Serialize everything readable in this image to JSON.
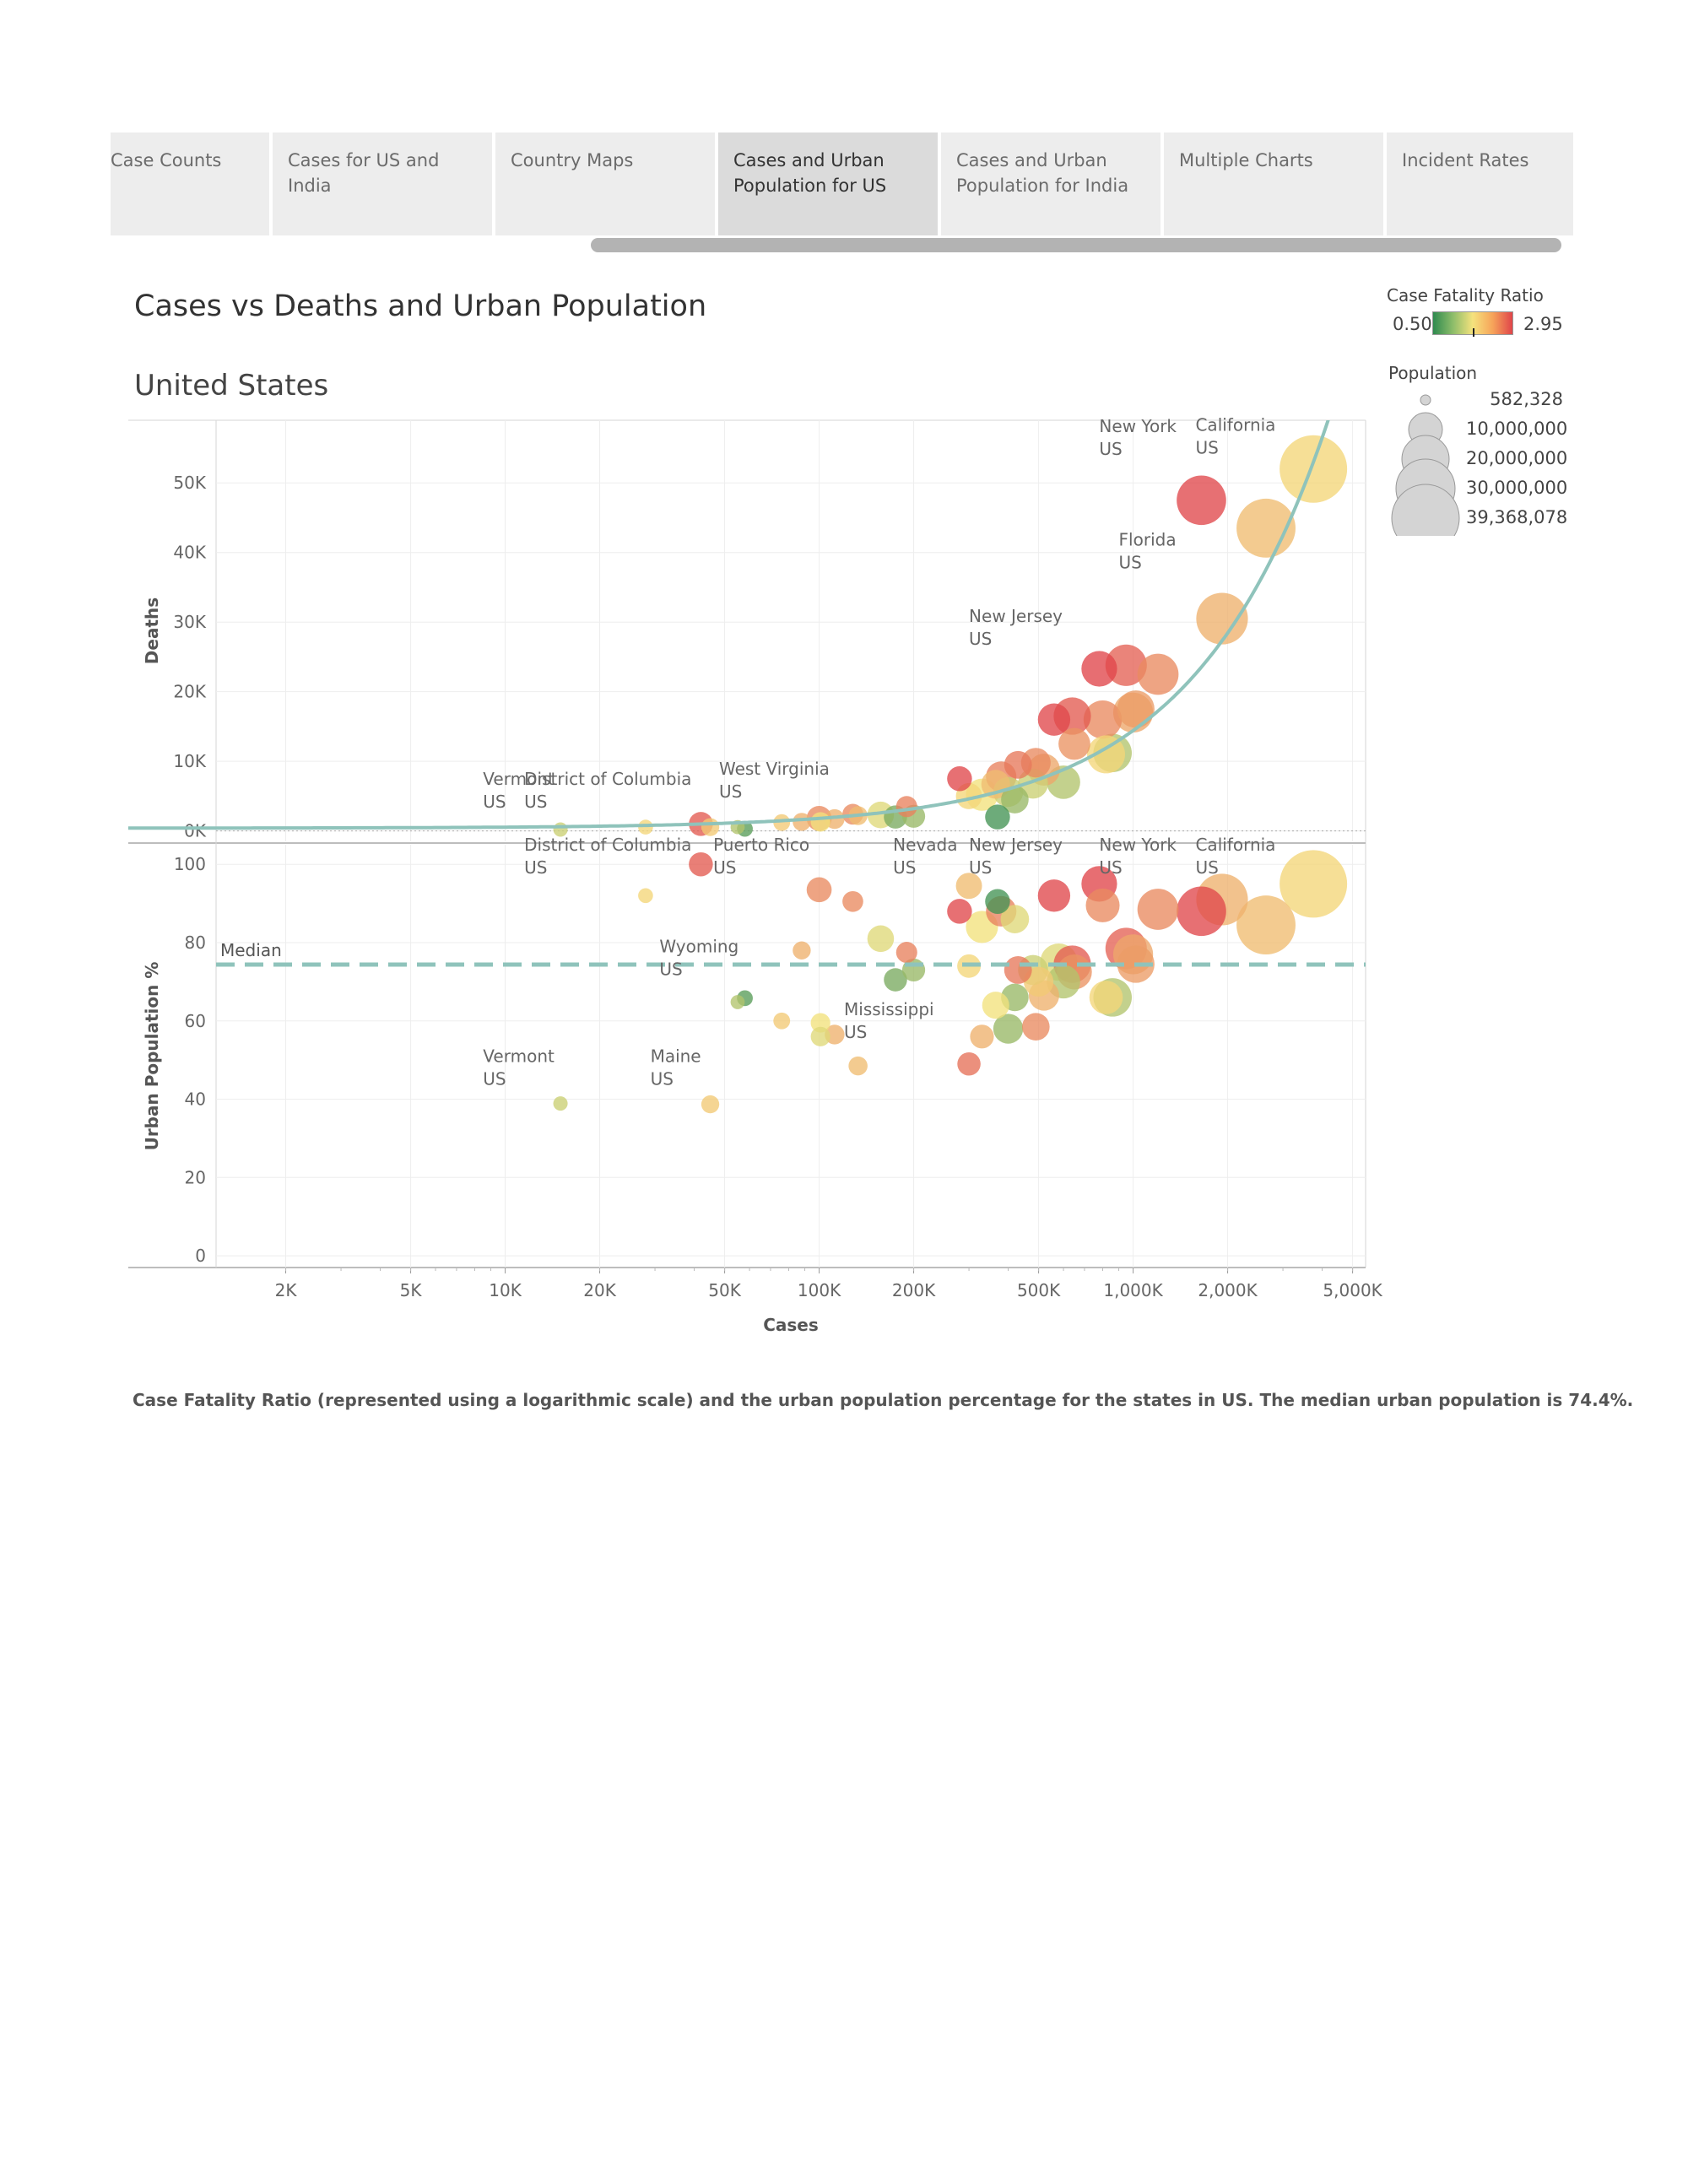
{
  "tabs": [
    {
      "label": "Case Counts",
      "active": false
    },
    {
      "label": "Cases for US and India",
      "active": false
    },
    {
      "label": "Country Maps",
      "active": false
    },
    {
      "label": "Cases and Urban\nPopulation for US",
      "active": true
    },
    {
      "label": "Cases and Urban\nPopulation for India",
      "active": false
    },
    {
      "label": "Multiple Charts",
      "active": false
    },
    {
      "label": "Incident Rates",
      "active": false
    }
  ],
  "header": {
    "title": "Cases vs Deaths and Urban Population",
    "subtitle": "United States"
  },
  "legend": {
    "cfr_title": "Case Fatality Ratio",
    "cfr_min": "0.50",
    "cfr_max": "2.95",
    "pop_title": "Population",
    "pop_entries": [
      "582,328",
      "10,000,000",
      "20,000,000",
      "30,000,000",
      "39,368,078"
    ]
  },
  "caption": "Case Fatality Ratio (represented using a logarithmic scale) and the urban population percentage for the states in US. The median urban population is 74.4%.",
  "colors": {
    "trend": "#8fc3bb",
    "grid": "#eeeeee",
    "cfr_low": "#2f8a4f",
    "cfr_mid": "#f5e27d",
    "cfr_high": "#e0454a"
  },
  "chart_data": {
    "type": "scatter",
    "xlabel": "Cases",
    "x_scale": "log",
    "xlim": [
      1200,
      5500000
    ],
    "x_ticks": [
      {
        "v": 2000,
        "label": "2K"
      },
      {
        "v": 5000,
        "label": "5K"
      },
      {
        "v": 10000,
        "label": "10K"
      },
      {
        "v": 20000,
        "label": "20K"
      },
      {
        "v": 50000,
        "label": "50K"
      },
      {
        "v": 100000,
        "label": "100K"
      },
      {
        "v": 200000,
        "label": "200K"
      },
      {
        "v": 500000,
        "label": "500K"
      },
      {
        "v": 1000000,
        "label": "1,000K"
      },
      {
        "v": 2000000,
        "label": "2,000K"
      },
      {
        "v": 5000000,
        "label": "5,000K"
      }
    ],
    "panels": [
      {
        "name": "deaths",
        "ylabel": "Deaths",
        "ylim": [
          -1500,
          59000
        ],
        "y_ticks": [
          {
            "v": 0,
            "label": "0K"
          },
          {
            "v": 10000,
            "label": "10K"
          },
          {
            "v": 20000,
            "label": "20K"
          },
          {
            "v": 30000,
            "label": "30K"
          },
          {
            "v": 40000,
            "label": "40K"
          },
          {
            "v": 50000,
            "label": "50K"
          }
        ],
        "trend_line": {
          "type": "linear",
          "slope": 0.01402,
          "intercept": 400
        },
        "annotations": [
          {
            "text": [
              "Vermont",
              "US"
            ],
            "x": 8500,
            "y": 6600
          },
          {
            "text": [
              "District of Columbia",
              "US"
            ],
            "x": 11500,
            "y": 6600
          },
          {
            "text": [
              "West Virginia",
              "US"
            ],
            "x": 48000,
            "y": 8100
          },
          {
            "text": [
              "New Jersey",
              "US"
            ],
            "x": 300000,
            "y": 30000
          },
          {
            "text": [
              "Florida",
              "US"
            ],
            "x": 900000,
            "y": 41000
          },
          {
            "text": [
              "New York",
              "US"
            ],
            "x": 780000,
            "y": 57300
          },
          {
            "text": [
              "California",
              "US"
            ],
            "x": 1580000,
            "y": 57500
          }
        ],
        "points": [
          {
            "x": 15000,
            "y": 200,
            "cfr": 1.0,
            "pop": 623989
          },
          {
            "x": 28000,
            "y": 550,
            "cfr": 1.3,
            "pop": 705749
          },
          {
            "x": 42000,
            "y": 1000,
            "cfr": 2.6,
            "pop": 3193694
          },
          {
            "x": 45000,
            "y": 550,
            "cfr": 1.4,
            "pop": 1344212
          },
          {
            "x": 55000,
            "y": 550,
            "cfr": 0.9,
            "pop": 578759
          },
          {
            "x": 58000,
            "y": 300,
            "cfr": 0.6,
            "pop": 884659
          },
          {
            "x": 76000,
            "y": 1200,
            "cfr": 1.4,
            "pop": 1068778
          },
          {
            "x": 88000,
            "y": 1300,
            "cfr": 1.6,
            "pop": 1360000
          },
          {
            "x": 100000,
            "y": 1800,
            "cfr": 2.0,
            "pop": 3565287
          },
          {
            "x": 101000,
            "y": 1300,
            "cfr": 1.2,
            "pop": 1750000
          },
          {
            "x": 112000,
            "y": 1700,
            "cfr": 1.6,
            "pop": 1800000
          },
          {
            "x": 128000,
            "y": 2400,
            "cfr": 2.0,
            "pop": 2100000
          },
          {
            "x": 133000,
            "y": 2200,
            "cfr": 1.5,
            "pop": 1600000
          },
          {
            "x": 157000,
            "y": 2300,
            "cfr": 1.1,
            "pop": 4217737
          },
          {
            "x": 175000,
            "y": 2000,
            "cfr": 0.7,
            "pop": 2900000
          },
          {
            "x": 190000,
            "y": 3500,
            "cfr": 2.1,
            "pop": 2200000
          },
          {
            "x": 200000,
            "y": 2100,
            "cfr": 0.8,
            "pop": 2800000
          },
          {
            "x": 280000,
            "y": 7500,
            "cfr": 2.9,
            "pop": 3500000
          },
          {
            "x": 300000,
            "y": 5000,
            "cfr": 1.3,
            "pop": 4000000
          },
          {
            "x": 330000,
            "y": 5200,
            "cfr": 1.2,
            "pop": 6900000
          },
          {
            "x": 365000,
            "y": 6700,
            "cfr": 1.5,
            "pop": 5200000
          },
          {
            "x": 370000,
            "y": 2000,
            "cfr": 0.55,
            "pop": 3500000
          },
          {
            "x": 380000,
            "y": 7800,
            "cfr": 2.1,
            "pop": 6000000
          },
          {
            "x": 400000,
            "y": 5600,
            "cfr": 1.0,
            "pop": 5700000
          },
          {
            "x": 420000,
            "y": 4500,
            "cfr": 0.8,
            "pop": 4600000
          },
          {
            "x": 430000,
            "y": 9500,
            "cfr": 2.2,
            "pop": 4700000
          },
          {
            "x": 480000,
            "y": 6800,
            "cfr": 1.0,
            "pop": 5800000
          },
          {
            "x": 490000,
            "y": 9800,
            "cfr": 2.0,
            "pop": 5600000
          },
          {
            "x": 520000,
            "y": 8800,
            "cfr": 1.7,
            "pop": 6800000
          },
          {
            "x": 560000,
            "y": 16000,
            "cfr": 2.9,
            "pop": 7000000
          },
          {
            "x": 600000,
            "y": 7000,
            "cfr": 0.9,
            "pop": 7600000
          },
          {
            "x": 640000,
            "y": 16500,
            "cfr": 2.6,
            "pop": 10000000
          },
          {
            "x": 650000,
            "y": 12500,
            "cfr": 1.9,
            "pop": 6700000
          },
          {
            "x": 780000,
            "y": 23300,
            "cfr": 2.95,
            "pop": 8900000
          },
          {
            "x": 800000,
            "y": 16000,
            "cfr": 2.0,
            "pop": 10600000
          },
          {
            "x": 820000,
            "y": 11000,
            "cfr": 1.3,
            "pop": 10400000
          },
          {
            "x": 860000,
            "y": 11200,
            "cfr": 0.9,
            "pop": 10700000
          },
          {
            "x": 950000,
            "y": 23800,
            "cfr": 2.5,
            "pop": 12800000
          },
          {
            "x": 1000000,
            "y": 17000,
            "cfr": 1.7,
            "pop": 11700000
          },
          {
            "x": 1020000,
            "y": 17500,
            "cfr": 1.8,
            "pop": 10000000
          },
          {
            "x": 1200000,
            "y": 22500,
            "cfr": 2.0,
            "pop": 12600000
          },
          {
            "x": 1650000,
            "y": 47500,
            "cfr": 2.9,
            "pop": 19450000
          },
          {
            "x": 1920000,
            "y": 30500,
            "cfr": 1.6,
            "pop": 21500000
          },
          {
            "x": 2650000,
            "y": 43500,
            "cfr": 1.5,
            "pop": 29100000
          },
          {
            "x": 3750000,
            "y": 52000,
            "cfr": 1.3,
            "pop": 39368078
          }
        ]
      },
      {
        "name": "urban",
        "ylabel": "Urban Population %",
        "ylim": [
          -3,
          105
        ],
        "y_ticks": [
          {
            "v": 0,
            "label": "0"
          },
          {
            "v": 20,
            "label": "20"
          },
          {
            "v": 40,
            "label": "40"
          },
          {
            "v": 60,
            "label": "60"
          },
          {
            "v": 80,
            "label": "80"
          },
          {
            "v": 100,
            "label": "100"
          }
        ],
        "median": {
          "label": "Median",
          "value": 74.4
        },
        "annotations": [
          {
            "text": [
              "District of Columbia",
              "US"
            ],
            "x": 11500,
            "y": 103.5
          },
          {
            "text": [
              "Puerto Rico",
              "US"
            ],
            "x": 46000,
            "y": 103.5
          },
          {
            "text": [
              "Nevada",
              "US"
            ],
            "x": 172000,
            "y": 103.5
          },
          {
            "text": [
              "New Jersey",
              "US"
            ],
            "x": 300000,
            "y": 103.5
          },
          {
            "text": [
              "New York",
              "US"
            ],
            "x": 780000,
            "y": 103.5
          },
          {
            "text": [
              "California",
              "US"
            ],
            "x": 1580000,
            "y": 103.5
          },
          {
            "text": [
              "Wyoming",
              "US"
            ],
            "x": 31000,
            "y": 77.5
          },
          {
            "text": [
              "Mississippi",
              "US"
            ],
            "x": 120000,
            "y": 61.5
          },
          {
            "text": [
              "Vermont",
              "US"
            ],
            "x": 8500,
            "y": 49.5
          },
          {
            "text": [
              "Maine",
              "US"
            ],
            "x": 29000,
            "y": 49.5
          }
        ],
        "points": [
          {
            "x": 15000,
            "y": 38.9,
            "cfr": 1.0,
            "pop": 623989
          },
          {
            "x": 28000,
            "y": 92,
            "cfr": 1.3,
            "pop": 705749
          },
          {
            "x": 42000,
            "y": 100,
            "cfr": 2.6,
            "pop": 3193694
          },
          {
            "x": 45000,
            "y": 38.7,
            "cfr": 1.4,
            "pop": 1344212
          },
          {
            "x": 55000,
            "y": 64.8,
            "cfr": 0.9,
            "pop": 578759
          },
          {
            "x": 58000,
            "y": 65.8,
            "cfr": 0.6,
            "pop": 884659
          },
          {
            "x": 76000,
            "y": 60,
            "cfr": 1.4,
            "pop": 1068778
          },
          {
            "x": 88000,
            "y": 78,
            "cfr": 1.6,
            "pop": 1360000
          },
          {
            "x": 100000,
            "y": 93.5,
            "cfr": 2.0,
            "pop": 3565287
          },
          {
            "x": 101000,
            "y": 59.5,
            "cfr": 1.2,
            "pop": 1750000
          },
          {
            "x": 101000,
            "y": 56,
            "cfr": 1.1,
            "pop": 1750000
          },
          {
            "x": 112000,
            "y": 56.5,
            "cfr": 1.6,
            "pop": 1800000
          },
          {
            "x": 128000,
            "y": 90.5,
            "cfr": 2.0,
            "pop": 2100000
          },
          {
            "x": 133000,
            "y": 48.5,
            "cfr": 1.5,
            "pop": 1600000
          },
          {
            "x": 157000,
            "y": 81,
            "cfr": 1.1,
            "pop": 4217737
          },
          {
            "x": 175000,
            "y": 70.5,
            "cfr": 0.7,
            "pop": 2900000
          },
          {
            "x": 190000,
            "y": 77.5,
            "cfr": 2.1,
            "pop": 2200000
          },
          {
            "x": 200000,
            "y": 73,
            "cfr": 0.8,
            "pop": 2800000
          },
          {
            "x": 280000,
            "y": 88,
            "cfr": 2.9,
            "pop": 3500000
          },
          {
            "x": 300000,
            "y": 94.5,
            "cfr": 1.5,
            "pop": 4000000
          },
          {
            "x": 300000,
            "y": 49,
            "cfr": 2.3,
            "pop": 2900000
          },
          {
            "x": 300000,
            "y": 74,
            "cfr": 1.3,
            "pop": 3000000
          },
          {
            "x": 330000,
            "y": 84,
            "cfr": 1.2,
            "pop": 6900000
          },
          {
            "x": 330000,
            "y": 56,
            "cfr": 1.6,
            "pop": 3100000
          },
          {
            "x": 365000,
            "y": 64,
            "cfr": 1.2,
            "pop": 4400000
          },
          {
            "x": 370000,
            "y": 90.5,
            "cfr": 0.55,
            "pop": 3500000
          },
          {
            "x": 380000,
            "y": 88,
            "cfr": 2.1,
            "pop": 6000000
          },
          {
            "x": 400000,
            "y": 58,
            "cfr": 0.8,
            "pop": 5700000
          },
          {
            "x": 420000,
            "y": 86,
            "cfr": 1.1,
            "pop": 5000000
          },
          {
            "x": 420000,
            "y": 66,
            "cfr": 0.8,
            "pop": 4600000
          },
          {
            "x": 430000,
            "y": 73,
            "cfr": 2.2,
            "pop": 4700000
          },
          {
            "x": 480000,
            "y": 73,
            "cfr": 1.0,
            "pop": 5800000
          },
          {
            "x": 490000,
            "y": 58.5,
            "cfr": 2.0,
            "pop": 4600000
          },
          {
            "x": 500000,
            "y": 70,
            "cfr": 1.4,
            "pop": 5600000
          },
          {
            "x": 520000,
            "y": 66.5,
            "cfr": 1.6,
            "pop": 6000000
          },
          {
            "x": 560000,
            "y": 92,
            "cfr": 2.9,
            "pop": 7000000
          },
          {
            "x": 580000,
            "y": 75,
            "cfr": 1.1,
            "pop": 10000000
          },
          {
            "x": 600000,
            "y": 70,
            "cfr": 0.9,
            "pop": 7600000
          },
          {
            "x": 640000,
            "y": 74.5,
            "cfr": 2.6,
            "pop": 10000000
          },
          {
            "x": 650000,
            "y": 72.5,
            "cfr": 1.9,
            "pop": 8500000
          },
          {
            "x": 780000,
            "y": 95,
            "cfr": 2.95,
            "pop": 8900000
          },
          {
            "x": 800000,
            "y": 89.5,
            "cfr": 2.0,
            "pop": 7800000
          },
          {
            "x": 820000,
            "y": 66,
            "cfr": 1.3,
            "pop": 7600000
          },
          {
            "x": 860000,
            "y": 66,
            "cfr": 0.9,
            "pop": 10700000
          },
          {
            "x": 950000,
            "y": 78.5,
            "cfr": 2.5,
            "pop": 12800000
          },
          {
            "x": 1000000,
            "y": 77,
            "cfr": 1.7,
            "pop": 11700000
          },
          {
            "x": 1020000,
            "y": 74.5,
            "cfr": 1.8,
            "pop": 10000000
          },
          {
            "x": 1200000,
            "y": 88.5,
            "cfr": 2.0,
            "pop": 12600000
          },
          {
            "x": 1650000,
            "y": 88,
            "cfr": 2.9,
            "pop": 19450000
          },
          {
            "x": 1920000,
            "y": 91,
            "cfr": 1.6,
            "pop": 21500000
          },
          {
            "x": 2650000,
            "y": 84.5,
            "cfr": 1.5,
            "pop": 29100000
          },
          {
            "x": 3750000,
            "y": 95,
            "cfr": 1.3,
            "pop": 39368078
          }
        ]
      }
    ]
  }
}
